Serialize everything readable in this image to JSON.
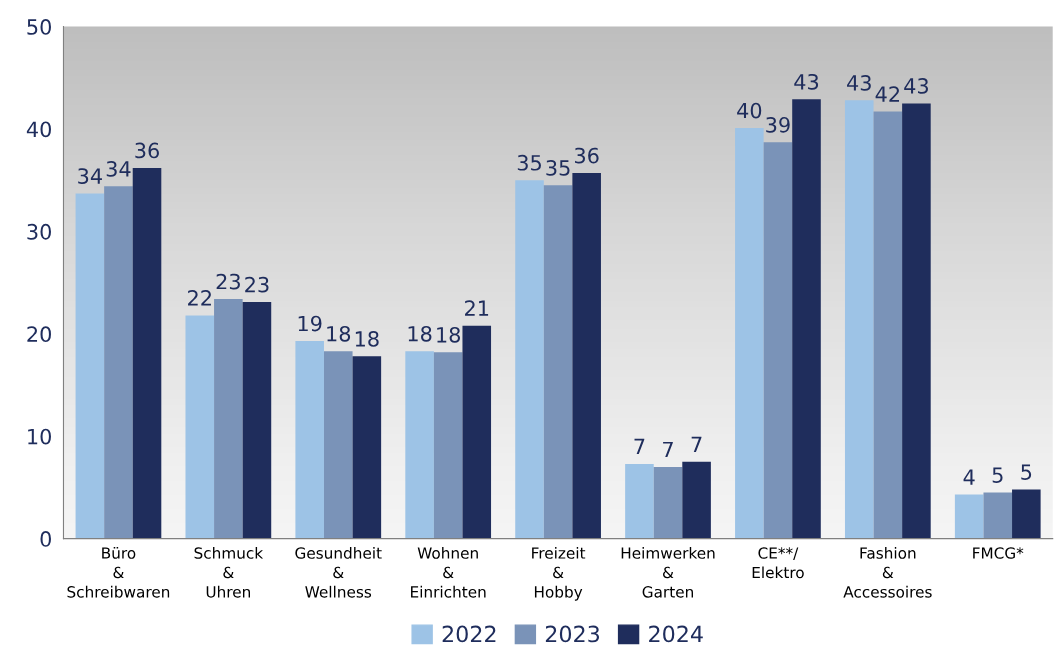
{
  "chart_data": {
    "type": "bar",
    "categories": [
      "Büro\n&\nSchreibwaren",
      "Schmuck\n&\nUhren",
      "Gesundheit\n&\nWellness",
      "Wohnen\n&\nEinrichten",
      "Freizeit\n&\nHobby",
      "Heimwerken\n&\nGarten",
      "CE**/\nElektro",
      "Fashion\n&\nAccessoires",
      "FMCG*"
    ],
    "series": [
      {
        "name": "2022",
        "color": "#9dc3e6",
        "values": [
          33.7,
          21.8,
          19.3,
          18.3,
          35.0,
          7.3,
          40.1,
          42.8,
          4.3
        ],
        "value_labels": [
          "34",
          "22",
          "19",
          "18",
          "35",
          "7",
          "40",
          "43",
          "4"
        ]
      },
      {
        "name": "2023",
        "color": "#7a93b8",
        "values": [
          34.4,
          23.4,
          18.3,
          18.2,
          34.5,
          7.0,
          38.7,
          41.7,
          4.5
        ],
        "value_labels": [
          "34",
          "23",
          "18",
          "18",
          "35",
          "7",
          "39",
          "42",
          "5"
        ]
      },
      {
        "name": "2024",
        "color": "#1f2d5c",
        "values": [
          36.2,
          23.1,
          17.8,
          20.8,
          35.7,
          7.5,
          42.9,
          42.5,
          4.8
        ],
        "value_labels": [
          "36",
          "23",
          "18",
          "21",
          "36",
          "7",
          "43",
          "43",
          "5"
        ]
      }
    ],
    "ylim": [
      0,
      50
    ],
    "yticks": [
      0,
      10,
      20,
      30,
      40,
      50
    ],
    "grid": false,
    "legend": "bottom"
  }
}
